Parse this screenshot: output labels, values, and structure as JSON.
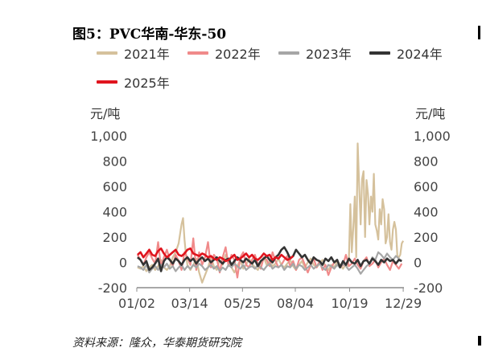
{
  "title": "图5：PVC华南-华东-50",
  "unit_left": "元/吨",
  "unit_right": "元/吨",
  "source": "资料来源：隆众，华泰期货研究院",
  "chart_data": {
    "type": "line",
    "title": "图5：PVC华南-华东-50",
    "ylabel_left": "元/吨",
    "ylabel_right": "元/吨",
    "ylim": [
      -200,
      1000
    ],
    "yticks": [
      -200,
      0,
      200,
      400,
      600,
      800,
      1000
    ],
    "ytick_labels": [
      "-200",
      "0",
      "200",
      "400",
      "600",
      "800",
      "1,000"
    ],
    "xlim": [
      1,
      365
    ],
    "xticks": [
      1,
      73,
      145,
      217,
      291,
      364
    ],
    "xtick_labels": [
      "01/02",
      "03/14",
      "05/25",
      "08/04",
      "10/19",
      "12/29"
    ],
    "legend_position": "top",
    "grid": false,
    "series": [
      {
        "name": "2021年",
        "color": "#D5C19C",
        "x": [
          2,
          6,
          10,
          14,
          18,
          22,
          26,
          30,
          34,
          38,
          42,
          46,
          50,
          54,
          58,
          62,
          64,
          66,
          68,
          70,
          74,
          78,
          82,
          86,
          90,
          94,
          98,
          102,
          106,
          110,
          114,
          118,
          122,
          126,
          130,
          134,
          138,
          142,
          146,
          150,
          154,
          158,
          162,
          166,
          170,
          174,
          178,
          182,
          186,
          190,
          194,
          198,
          202,
          206,
          210,
          214,
          218,
          222,
          226,
          230,
          234,
          238,
          242,
          246,
          250,
          254,
          258,
          262,
          266,
          270,
          274,
          278,
          282,
          286,
          288,
          290,
          292,
          294,
          296,
          298,
          300,
          302,
          304,
          306,
          308,
          310,
          312,
          314,
          316,
          318,
          320,
          322,
          324,
          326,
          328,
          330,
          332,
          334,
          336,
          338,
          340,
          342,
          344,
          346,
          348,
          350,
          352,
          354,
          356,
          358,
          360,
          362,
          364
        ],
        "y": [
          -40,
          -50,
          -30,
          -70,
          -40,
          -20,
          -60,
          -30,
          20,
          -40,
          -60,
          -30,
          40,
          80,
          150,
          300,
          350,
          180,
          60,
          -20,
          -60,
          -20,
          30,
          -80,
          -160,
          -100,
          -40,
          40,
          -30,
          -60,
          20,
          -20,
          60,
          10,
          -40,
          -80,
          -30,
          20,
          -50,
          -20,
          30,
          -10,
          -40,
          -60,
          0,
          40,
          -20,
          10,
          -30,
          -10,
          30,
          -20,
          -40,
          -10,
          20,
          -30,
          -60,
          -20,
          10,
          -40,
          0,
          30,
          -20,
          -40,
          -10,
          20,
          -30,
          -60,
          -20,
          -40,
          10,
          -20,
          -50,
          -10,
          -30,
          30,
          460,
          80,
          280,
          520,
          40,
          940,
          600,
          300,
          660,
          720,
          200,
          650,
          540,
          300,
          520,
          400,
          700,
          300,
          250,
          180,
          420,
          300,
          500,
          420,
          150,
          200,
          380,
          160,
          100,
          260,
          320,
          260,
          50,
          40,
          60,
          150,
          170
        ]
      },
      {
        "name": "2022年",
        "color": "#F08A8A",
        "x": [
          2,
          6,
          10,
          14,
          18,
          22,
          26,
          30,
          34,
          38,
          42,
          46,
          50,
          54,
          58,
          62,
          66,
          70,
          74,
          78,
          82,
          86,
          90,
          94,
          98,
          102,
          106,
          110,
          114,
          118,
          122,
          126,
          130,
          134,
          138,
          142,
          146,
          150,
          154,
          158,
          162,
          166,
          170,
          174,
          178,
          182,
          186,
          190,
          194,
          198,
          202,
          206,
          210,
          214,
          218,
          222,
          226,
          230,
          234,
          238,
          242,
          246,
          250,
          254,
          258,
          262,
          266,
          270,
          274,
          278,
          282,
          286,
          290,
          294,
          298,
          302,
          306,
          310,
          314,
          318,
          322,
          326,
          330,
          334,
          338,
          342,
          346,
          350,
          354,
          358,
          362
        ],
        "y": [
          60,
          20,
          -20,
          40,
          80,
          30,
          -10,
          160,
          -40,
          40,
          100,
          20,
          -30,
          60,
          10,
          -60,
          80,
          40,
          -20,
          190,
          -60,
          80,
          -20,
          40,
          160,
          -40,
          60,
          30,
          -80,
          40,
          120,
          -30,
          60,
          20,
          -120,
          40,
          80,
          -20,
          -40,
          20,
          60,
          -10,
          -50,
          40,
          20,
          -30,
          80,
          10,
          -40,
          -20,
          20,
          50,
          -30,
          10,
          -60,
          20,
          40,
          -20,
          -80,
          -20,
          30,
          -40,
          10,
          -60,
          -20,
          -100,
          -40,
          0,
          20,
          -40,
          -20,
          60,
          -30,
          -10,
          30,
          -20,
          -50,
          10,
          40,
          -30,
          -10,
          20,
          -40,
          0,
          30,
          -20,
          -60,
          10,
          -20,
          -50,
          -10
        ]
      },
      {
        "name": "2023年",
        "color": "#A6A6A6",
        "x": [
          2,
          6,
          10,
          14,
          18,
          22,
          26,
          30,
          34,
          38,
          42,
          46,
          50,
          54,
          58,
          62,
          66,
          70,
          74,
          78,
          82,
          86,
          90,
          94,
          98,
          102,
          106,
          110,
          114,
          118,
          122,
          126,
          130,
          134,
          138,
          142,
          146,
          150,
          154,
          158,
          162,
          166,
          170,
          174,
          178,
          182,
          186,
          190,
          194,
          198,
          202,
          206,
          210,
          214,
          218,
          222,
          226,
          230,
          234,
          238,
          242,
          246,
          250,
          254,
          258,
          262,
          266,
          270,
          274,
          278,
          282,
          286,
          290,
          294,
          298,
          302,
          306,
          310,
          314,
          318,
          322,
          326,
          330,
          334,
          338,
          342,
          346,
          350,
          354,
          358,
          362
        ],
        "y": [
          -30,
          -40,
          -60,
          -20,
          -80,
          -50,
          -30,
          -60,
          -20,
          -40,
          -10,
          -50,
          -30,
          -70,
          -40,
          -20,
          -60,
          -30,
          -50,
          -20,
          -40,
          -10,
          -30,
          -60,
          -40,
          -20,
          -50,
          -30,
          -70,
          -40,
          -60,
          -20,
          -40,
          -10,
          -30,
          -50,
          -20,
          -60,
          -40,
          -30,
          -50,
          -20,
          -40,
          -60,
          -30,
          -10,
          -50,
          -30,
          -40,
          -20,
          -60,
          -30,
          -40,
          -10,
          -50,
          -20,
          -30,
          -60,
          -40,
          -20,
          -50,
          -30,
          -10,
          -40,
          -60,
          -20,
          -30,
          -50,
          -20,
          -40,
          -10,
          -30,
          -60,
          -40,
          -20,
          -50,
          -90,
          -60,
          -30,
          -10,
          40,
          20,
          80,
          60,
          30,
          70,
          40,
          20,
          50,
          30,
          10
        ]
      },
      {
        "name": "2024年",
        "color": "#333333",
        "x": [
          2,
          6,
          10,
          14,
          18,
          22,
          26,
          30,
          34,
          38,
          42,
          46,
          50,
          54,
          58,
          62,
          66,
          70,
          74,
          78,
          82,
          86,
          90,
          94,
          98,
          102,
          106,
          110,
          114,
          118,
          122,
          126,
          130,
          134,
          138,
          142,
          146,
          150,
          154,
          158,
          162,
          166,
          170,
          174,
          178,
          182,
          186,
          190,
          194,
          198,
          202,
          206,
          210,
          214,
          218,
          222,
          226,
          230,
          234,
          238,
          242,
          246,
          250,
          254,
          258,
          262,
          266,
          270,
          274,
          278,
          282,
          286,
          290,
          294,
          298,
          302,
          306,
          310,
          314,
          318,
          322,
          326,
          330,
          334,
          338,
          342,
          346,
          350,
          354,
          358,
          362
        ],
        "y": [
          40,
          20,
          -20,
          10,
          -60,
          -40,
          -10,
          30,
          -70,
          10,
          40,
          20,
          -10,
          30,
          10,
          -20,
          20,
          40,
          10,
          30,
          -10,
          20,
          40,
          10,
          30,
          0,
          20,
          40,
          10,
          -10,
          20,
          30,
          -20,
          10,
          40,
          20,
          0,
          30,
          10,
          -10,
          20,
          -30,
          10,
          30,
          50,
          20,
          0,
          40,
          60,
          100,
          120,
          80,
          30,
          50,
          100,
          70,
          40,
          60,
          20,
          -10,
          40,
          20,
          10,
          -20,
          30,
          10,
          40,
          0,
          20,
          -40,
          10,
          -20,
          30,
          0,
          -10,
          20,
          -30,
          10,
          20,
          -10,
          30,
          10,
          -20,
          20,
          0,
          30,
          10,
          20,
          -10,
          20,
          10
        ]
      },
      {
        "name": "2025年",
        "color": "#E0141E",
        "x": [
          2,
          6,
          10,
          14,
          18,
          22,
          26,
          30,
          34,
          38,
          42,
          46,
          50,
          54,
          58,
          62,
          66,
          70,
          74,
          78,
          82,
          86,
          90,
          94,
          98,
          102,
          106,
          110,
          114,
          118,
          122,
          126,
          130,
          134,
          138,
          142,
          146,
          150,
          154,
          158,
          162,
          166,
          170,
          174,
          178,
          182,
          186,
          190,
          194,
          198,
          202,
          206,
          210,
          214
        ],
        "y": [
          60,
          80,
          40,
          70,
          100,
          60,
          50,
          90,
          110,
          70,
          40,
          60,
          80,
          100,
          60,
          50,
          70,
          100,
          110,
          70,
          60,
          50,
          70,
          60,
          40,
          50,
          30,
          20,
          40,
          30,
          10,
          20,
          40,
          60,
          20,
          30,
          50,
          70,
          40,
          60,
          30,
          20,
          40,
          70,
          50,
          60,
          20,
          40,
          30,
          60,
          40,
          20,
          30,
          50
        ]
      }
    ]
  }
}
